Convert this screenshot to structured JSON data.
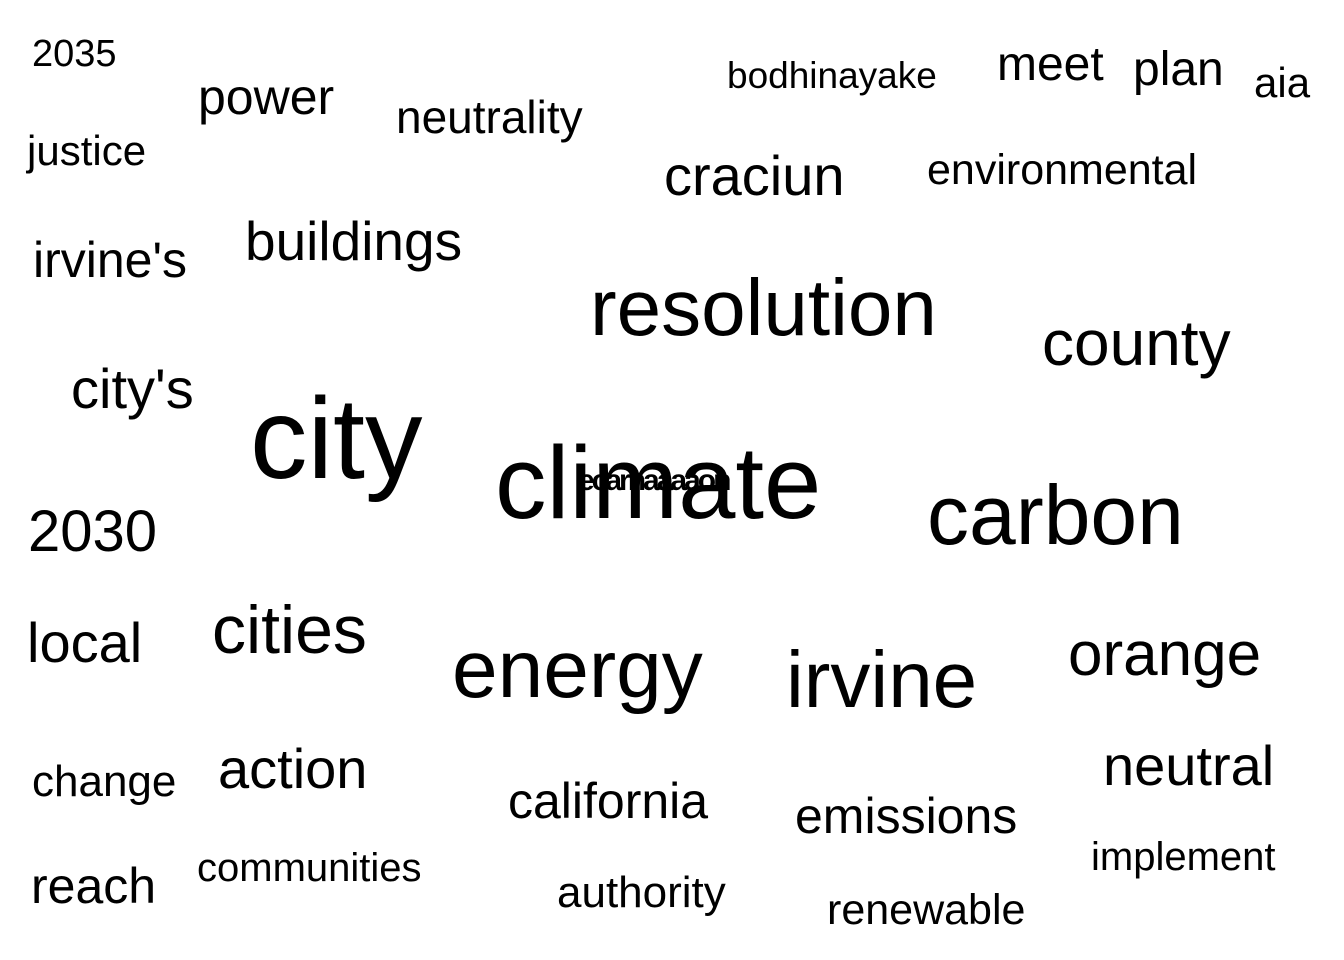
{
  "cloud": {
    "text_color": "#000000",
    "background": "#ffffff",
    "words": [
      {
        "id": "2035",
        "text": "2035"
      },
      {
        "id": "power",
        "text": "power"
      },
      {
        "id": "neutrality",
        "text": "neutrality"
      },
      {
        "id": "bodhinayake",
        "text": "bodhinayake"
      },
      {
        "id": "meet",
        "text": "meet"
      },
      {
        "id": "plan",
        "text": "plan"
      },
      {
        "id": "aia",
        "text": "aia"
      },
      {
        "id": "justice",
        "text": "justice"
      },
      {
        "id": "craciun",
        "text": "craciun"
      },
      {
        "id": "environmental",
        "text": "environmental"
      },
      {
        "id": "irvines",
        "text": "irvine's"
      },
      {
        "id": "buildings",
        "text": "buildings"
      },
      {
        "id": "resolution",
        "text": "resolution"
      },
      {
        "id": "county",
        "text": "county"
      },
      {
        "id": "citys",
        "text": "city's"
      },
      {
        "id": "city",
        "text": "city"
      },
      {
        "id": "climate",
        "text": "climate"
      },
      {
        "id": "carbon",
        "text": "carbon"
      },
      {
        "id": "2030",
        "text": "2030"
      },
      {
        "id": "local",
        "text": "local"
      },
      {
        "id": "cities",
        "text": "cities"
      },
      {
        "id": "energy",
        "text": "energy"
      },
      {
        "id": "irvine",
        "text": "irvine"
      },
      {
        "id": "orange",
        "text": "orange"
      },
      {
        "id": "change",
        "text": "change"
      },
      {
        "id": "action",
        "text": "action"
      },
      {
        "id": "california",
        "text": "california"
      },
      {
        "id": "emissions",
        "text": "emissions"
      },
      {
        "id": "neutral",
        "text": "neutral"
      },
      {
        "id": "reach",
        "text": "reach"
      },
      {
        "id": "communities",
        "text": "communities"
      },
      {
        "id": "authority",
        "text": "authority"
      },
      {
        "id": "implement",
        "text": "implement"
      },
      {
        "id": "renewable",
        "text": "renewable"
      }
    ]
  }
}
